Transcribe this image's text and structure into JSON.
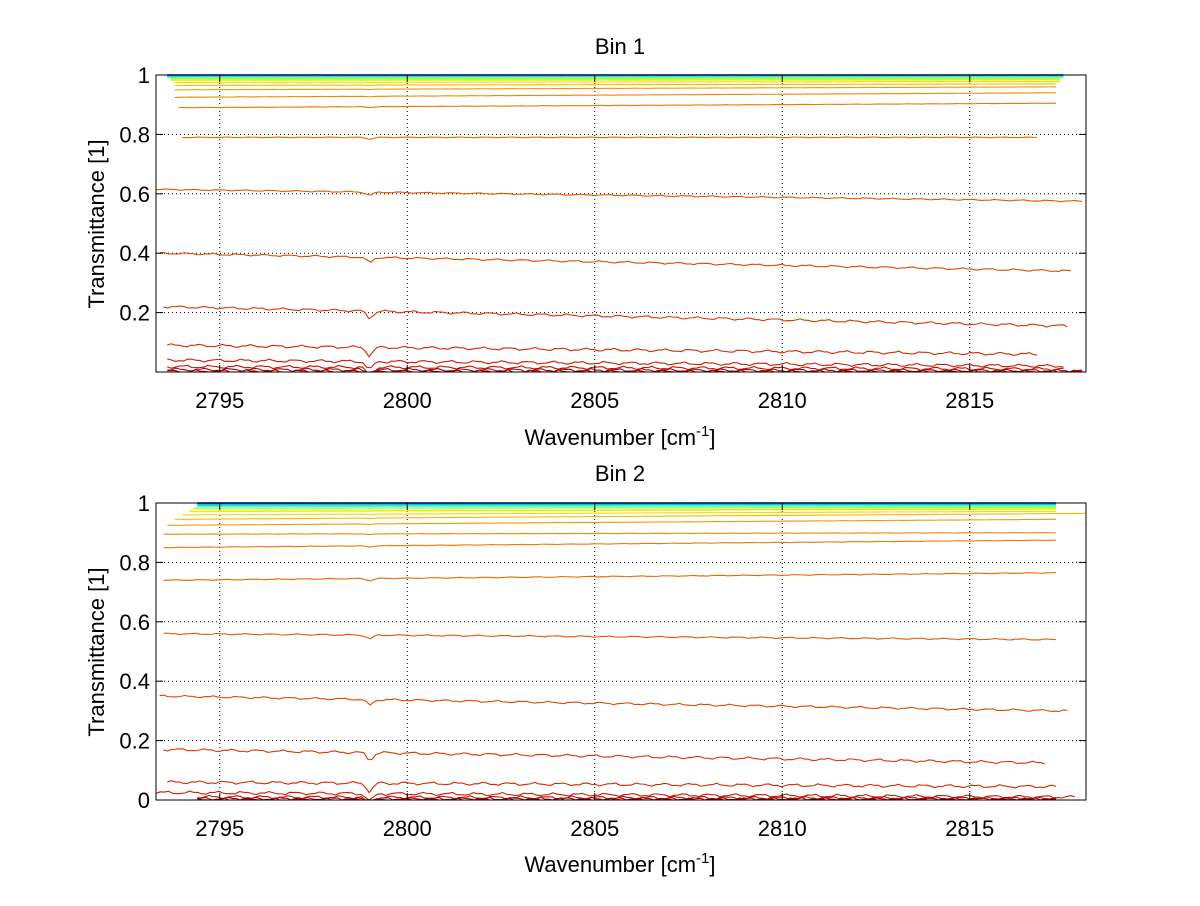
{
  "figure": {
    "background": "#ffffff"
  },
  "chart_data": [
    {
      "type": "line",
      "title": "Bin 1",
      "xlabel": "Wavenumber [cm",
      "xlabel_sup": "-1",
      "xlabel_end": "]",
      "ylabel": "Transmittance [1]",
      "xlim": [
        2793.3,
        2818.1
      ],
      "ylim": [
        0,
        1.0
      ],
      "xticks": [
        2795,
        2800,
        2805,
        2810,
        2815
      ],
      "xtick_labels": [
        "2795",
        "2800",
        "2805",
        "2810",
        "2815"
      ],
      "yticks": [
        0.2,
        0.4,
        0.6,
        0.8,
        1.0
      ],
      "ytick_labels": [
        "0.2",
        "0.4",
        "0.6",
        "0.8",
        "1"
      ],
      "grid": true,
      "absorption_dip": {
        "x": 2799.0,
        "depth_fraction": 0.03
      },
      "series": [
        {
          "name": "curve-01",
          "color": "#00008f",
          "x_range": [
            2793.6,
            2817.5
          ],
          "y_start": 1.0,
          "y_end": 1.0
        },
        {
          "name": "curve-02",
          "color": "#0050ff",
          "x_range": [
            2793.6,
            2817.5
          ],
          "y_start": 0.998,
          "y_end": 0.998
        },
        {
          "name": "curve-03",
          "color": "#00c0ff",
          "x_range": [
            2793.6,
            2817.5
          ],
          "y_start": 0.995,
          "y_end": 0.995
        },
        {
          "name": "curve-04",
          "color": "#40ffbf",
          "x_range": [
            2793.6,
            2817.5
          ],
          "y_start": 0.992,
          "y_end": 0.993
        },
        {
          "name": "curve-05",
          "color": "#9fff60",
          "x_range": [
            2793.7,
            2817.4
          ],
          "y_start": 0.988,
          "y_end": 0.989
        },
        {
          "name": "curve-06",
          "color": "#e6f000",
          "x_range": [
            2793.7,
            2817.4
          ],
          "y_start": 0.983,
          "y_end": 0.984
        },
        {
          "name": "curve-07",
          "color": "#f5d800",
          "x_range": [
            2793.8,
            2817.4
          ],
          "y_start": 0.975,
          "y_end": 0.978
        },
        {
          "name": "curve-08",
          "color": "#f7b800",
          "x_range": [
            2793.8,
            2817.3
          ],
          "y_start": 0.965,
          "y_end": 0.97
        },
        {
          "name": "curve-09",
          "color": "#f29a00",
          "x_range": [
            2793.8,
            2817.3
          ],
          "y_start": 0.95,
          "y_end": 0.96
        },
        {
          "name": "curve-10",
          "color": "#ee8a00",
          "x_range": [
            2793.8,
            2817.3
          ],
          "y_start": 0.925,
          "y_end": 0.94
        },
        {
          "name": "curve-11",
          "color": "#ea7a00",
          "x_range": [
            2793.9,
            2817.3
          ],
          "y_start": 0.89,
          "y_end": 0.905
        },
        {
          "name": "curve-12",
          "color": "#e56a00",
          "x_range": [
            2794.0,
            2816.8
          ],
          "y_start": 0.79,
          "y_end": 0.79
        },
        {
          "name": "curve-13",
          "color": "#e05a00",
          "x_range": [
            2793.3,
            2818.0
          ],
          "y_start": 0.615,
          "y_end": 0.575
        },
        {
          "name": "curve-14",
          "color": "#dc4a00",
          "x_range": [
            2793.4,
            2817.7
          ],
          "y_start": 0.4,
          "y_end": 0.34
        },
        {
          "name": "curve-15",
          "color": "#d83800",
          "x_range": [
            2793.5,
            2817.6
          ],
          "y_start": 0.22,
          "y_end": 0.155
        },
        {
          "name": "curve-16",
          "color": "#d02a00",
          "x_range": [
            2793.6,
            2816.8
          ],
          "y_start": 0.09,
          "y_end": 0.06
        },
        {
          "name": "curve-17",
          "color": "#c81e00",
          "x_range": [
            2793.6,
            2817.5
          ],
          "y_start": 0.04,
          "y_end": 0.02
        },
        {
          "name": "curve-18",
          "color": "#c01000",
          "x_range": [
            2793.6,
            2817.5
          ],
          "y_start": 0.018,
          "y_end": 0.01
        },
        {
          "name": "curve-19",
          "color": "#b50000",
          "x_range": [
            2793.6,
            2818.0
          ],
          "y_start": 0.008,
          "y_end": 0.004
        },
        {
          "name": "curve-20",
          "color": "#a00000",
          "x_range": [
            2793.6,
            2818.0
          ],
          "y_start": 0.002,
          "y_end": 0.001
        }
      ]
    },
    {
      "type": "line",
      "title": "Bin 2",
      "xlabel": "Wavenumber [cm",
      "xlabel_sup": "-1",
      "xlabel_end": "]",
      "ylabel": "Transmittance [1]",
      "xlim": [
        2793.3,
        2818.1
      ],
      "ylim": [
        0,
        1.0
      ],
      "xticks": [
        2795,
        2800,
        2805,
        2810,
        2815
      ],
      "xtick_labels": [
        "2795",
        "2800",
        "2805",
        "2810",
        "2815"
      ],
      "yticks": [
        0,
        0.2,
        0.4,
        0.6,
        0.8,
        1.0
      ],
      "ytick_labels": [
        "0",
        "0.2",
        "0.4",
        "0.6",
        "0.8",
        "1"
      ],
      "grid": true,
      "absorption_dip": {
        "x": 2799.0,
        "depth_fraction": 0.03
      },
      "series": [
        {
          "name": "curve-01",
          "color": "#00008f",
          "x_range": [
            2794.4,
            2817.3
          ],
          "y_start": 1.0,
          "y_end": 1.0
        },
        {
          "name": "curve-02",
          "color": "#0050ff",
          "x_range": [
            2794.4,
            2817.3
          ],
          "y_start": 0.998,
          "y_end": 0.998
        },
        {
          "name": "curve-03",
          "color": "#00c0ff",
          "x_range": [
            2794.4,
            2817.3
          ],
          "y_start": 0.994,
          "y_end": 0.995
        },
        {
          "name": "curve-04",
          "color": "#40ffbf",
          "x_range": [
            2794.4,
            2817.3
          ],
          "y_start": 0.989,
          "y_end": 0.991
        },
        {
          "name": "curve-05",
          "color": "#9fff60",
          "x_range": [
            2794.3,
            2817.3
          ],
          "y_start": 0.982,
          "y_end": 0.986
        },
        {
          "name": "curve-06",
          "color": "#e6f000",
          "x_range": [
            2794.2,
            2817.3
          ],
          "y_start": 0.972,
          "y_end": 0.98
        },
        {
          "name": "curve-07",
          "color": "#f5d800",
          "x_range": [
            2794.0,
            2817.3
          ],
          "y_start": 0.96,
          "y_end": 0.972
        },
        {
          "name": "curve-08",
          "color": "#f7b800",
          "x_range": [
            2793.8,
            2818.1
          ],
          "y_start": 0.945,
          "y_end": 0.965
        },
        {
          "name": "curve-09",
          "color": "#f29a00",
          "x_range": [
            2793.6,
            2817.3
          ],
          "y_start": 0.925,
          "y_end": 0.945
        },
        {
          "name": "curve-10",
          "color": "#ee8a00",
          "x_range": [
            2793.5,
            2817.3
          ],
          "y_start": 0.895,
          "y_end": 0.9
        },
        {
          "name": "curve-11",
          "color": "#ea7a00",
          "x_range": [
            2793.5,
            2817.3
          ],
          "y_start": 0.85,
          "y_end": 0.875
        },
        {
          "name": "curve-12",
          "color": "#e56a00",
          "x_range": [
            2793.5,
            2817.3
          ],
          "y_start": 0.74,
          "y_end": 0.765
        },
        {
          "name": "curve-13",
          "color": "#e05a00",
          "x_range": [
            2793.5,
            2817.3
          ],
          "y_start": 0.56,
          "y_end": 0.54
        },
        {
          "name": "curve-14",
          "color": "#dc4a00",
          "x_range": [
            2793.4,
            2817.6
          ],
          "y_start": 0.35,
          "y_end": 0.3
        },
        {
          "name": "curve-15",
          "color": "#d83800",
          "x_range": [
            2793.5,
            2817.0
          ],
          "y_start": 0.17,
          "y_end": 0.125
        },
        {
          "name": "curve-16",
          "color": "#d02a00",
          "x_range": [
            2793.6,
            2817.3
          ],
          "y_start": 0.06,
          "y_end": 0.045
        },
        {
          "name": "curve-17",
          "color": "#c81e00",
          "x_range": [
            2793.3,
            2817.8
          ],
          "y_start": 0.025,
          "y_end": 0.01
        },
        {
          "name": "curve-18",
          "color": "#c01000",
          "x_range": [
            2794.4,
            2817.3
          ],
          "y_start": 0.01,
          "y_end": 0.005
        },
        {
          "name": "curve-19",
          "color": "#b50000",
          "x_range": [
            2794.4,
            2817.3
          ],
          "y_start": 0.004,
          "y_end": 0.003
        },
        {
          "name": "curve-20",
          "color": "#a00000",
          "x_range": [
            2794.4,
            2817.3
          ],
          "y_start": 0.001,
          "y_end": 0.001
        }
      ]
    }
  ]
}
